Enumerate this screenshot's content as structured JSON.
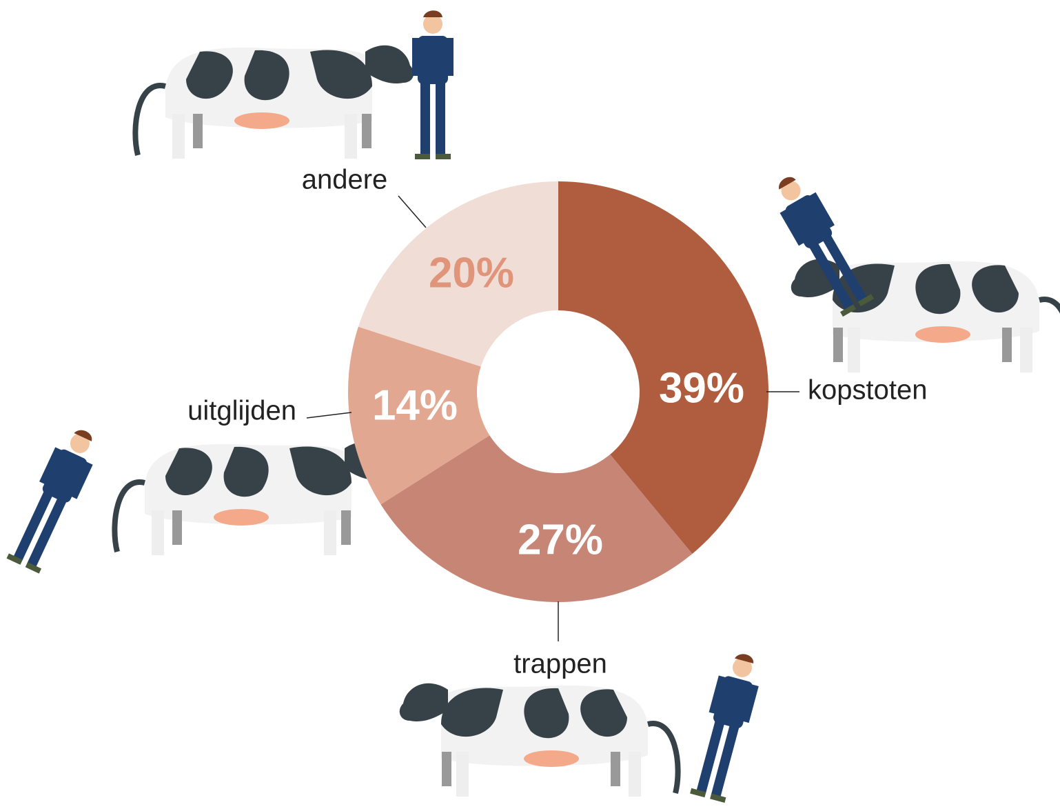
{
  "chart_data": {
    "type": "donut",
    "categories": [
      "kopstoten",
      "trappen",
      "uitglijden",
      "andere"
    ],
    "values": [
      39,
      27,
      14,
      20
    ],
    "value_labels": [
      "39%",
      "27%",
      "14%",
      "20%"
    ],
    "colors": [
      "#b05c3f",
      "#c68575",
      "#e2a791",
      "#f0ddd5"
    ],
    "value_label_colors": [
      "#ffffff",
      "#ffffff",
      "#ffffff",
      "#e0957a"
    ]
  }
}
